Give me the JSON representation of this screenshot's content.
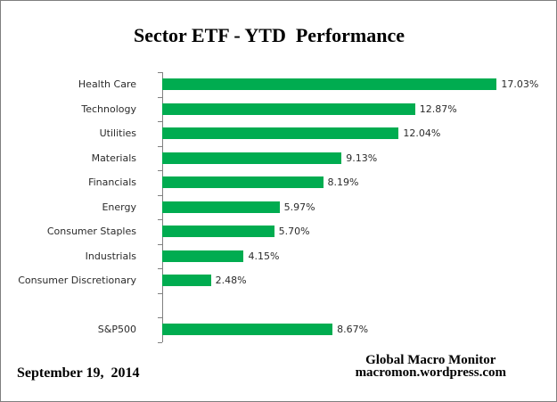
{
  "window": {
    "background": "#ffffff",
    "border_color": "#7f7f7f"
  },
  "chart_data": {
    "type": "bar",
    "orientation": "horizontal",
    "title": "Sector ETF - YTD  Performance",
    "categories": [
      "Health Care",
      "Technology",
      "Utilities",
      "Materials",
      "Financials",
      "Energy",
      "Consumer Staples",
      "Industrials",
      "Consumer Discretionary",
      "S&P500"
    ],
    "values": [
      17.03,
      12.87,
      12.04,
      9.13,
      8.19,
      5.97,
      5.7,
      4.15,
      2.48,
      8.67
    ],
    "data_labels": [
      "17.03%",
      "12.87%",
      "12.04%",
      "9.13%",
      "8.19%",
      "5.97%",
      "5.70%",
      "4.15%",
      "2.48%",
      "8.67%"
    ],
    "separator_before": "S&P500",
    "bar_color": "#00AC50",
    "axis_color": "#808080",
    "xlim": [
      0,
      17.6
    ],
    "grid": false,
    "legend": false,
    "xlabel": "",
    "ylabel": "",
    "value_label_suffix": "%"
  },
  "footer": {
    "date": "September 19,  2014",
    "credit_line1": "Global Macro Monitor",
    "credit_line2": "macromon.wordpress.com"
  }
}
